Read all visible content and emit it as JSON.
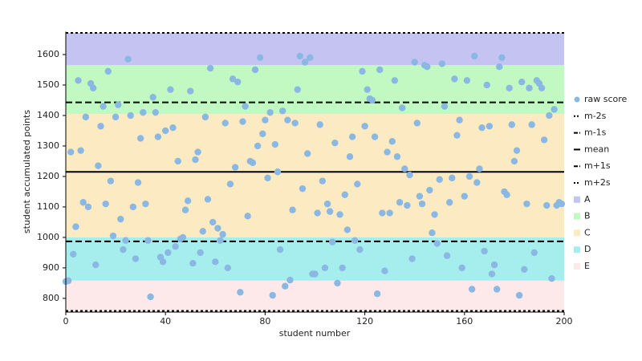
{
  "chart_data": {
    "type": "scatter",
    "xlabel": "student number",
    "ylabel": "student accumulated points",
    "xlim": [
      0,
      200
    ],
    "xticks": [
      0,
      40,
      80,
      120,
      160,
      200
    ],
    "ylim": [
      755,
      1675
    ],
    "yticks": [
      800,
      900,
      1000,
      1100,
      1200,
      1300,
      1400,
      1500,
      1600
    ],
    "bands": [
      {
        "name": "A",
        "range": [
          1565,
          1671
        ],
        "color": "#c5c3f2"
      },
      {
        "name": "B",
        "range": [
          1405,
          1565
        ],
        "color": "#c2f9c2"
      },
      {
        "name": "C",
        "range": [
          1000,
          1405
        ],
        "color": "#fcebc2"
      },
      {
        "name": "D",
        "range": [
          858,
          1000
        ],
        "color": "#a6eeee"
      },
      {
        "name": "E",
        "range": [
          759,
          858
        ],
        "color": "#fde9e9"
      }
    ],
    "lines": [
      {
        "name": "m-2s",
        "value": 759,
        "style": "dotted"
      },
      {
        "name": "m-1s",
        "value": 987,
        "style": "dashed"
      },
      {
        "name": "mean",
        "value": 1215,
        "style": "solid"
      },
      {
        "name": "m+1s",
        "value": 1443,
        "style": "dashed"
      },
      {
        "name": "m+2s",
        "value": 1671,
        "style": "dotted"
      }
    ],
    "series": [
      {
        "name": "raw score",
        "color": "#8ab8e2",
        "x": [
          0,
          1,
          2,
          3,
          4,
          5,
          6,
          7,
          8,
          9,
          10,
          11,
          12,
          13,
          14,
          15,
          16,
          17,
          18,
          19,
          20,
          21,
          22,
          23,
          24,
          25,
          26,
          27,
          28,
          29,
          30,
          31,
          32,
          33,
          34,
          35,
          36,
          37,
          38,
          39,
          40,
          41,
          42,
          43,
          44,
          45,
          46,
          47,
          48,
          49,
          50,
          51,
          52,
          53,
          54,
          55,
          56,
          57,
          58,
          59,
          60,
          61,
          62,
          63,
          64,
          65,
          66,
          67,
          68,
          69,
          70,
          71,
          72,
          73,
          74,
          75,
          76,
          77,
          78,
          79,
          80,
          81,
          82,
          83,
          84,
          85,
          86,
          87,
          88,
          89,
          90,
          91,
          92,
          93,
          94,
          95,
          96,
          97,
          98,
          99,
          100,
          101,
          102,
          103,
          104,
          105,
          106,
          107,
          108,
          109,
          110,
          111,
          112,
          113,
          114,
          115,
          116,
          117,
          118,
          119,
          120,
          121,
          122,
          123,
          124,
          125,
          126,
          127,
          128,
          129,
          130,
          131,
          132,
          133,
          134,
          135,
          136,
          137,
          138,
          139,
          140,
          141,
          142,
          143,
          144,
          145,
          146,
          147,
          148,
          149,
          150,
          151,
          152,
          153,
          154,
          155,
          156,
          157,
          158,
          159,
          160,
          161,
          162,
          163,
          164,
          165,
          166,
          167,
          168,
          169,
          170,
          171,
          172,
          173,
          174,
          175,
          176,
          177,
          178,
          179,
          180,
          181,
          182,
          183,
          184,
          185,
          186,
          187,
          188,
          189,
          190,
          191,
          192,
          193,
          194,
          195,
          196,
          197,
          198,
          199
        ],
        "values": [
          855,
          858,
          1280,
          945,
          1035,
          1515,
          1285,
          1115,
          1395,
          1100,
          1505,
          1490,
          910,
          1235,
          1365,
          1430,
          1110,
          1545,
          1185,
          1005,
          1395,
          1435,
          1060,
          960,
          990,
          1585,
          1400,
          1100,
          930,
          1180,
          1325,
          1410,
          1110,
          990,
          805,
          1460,
          1410,
          1330,
          935,
          920,
          1350,
          950,
          1485,
          1360,
          970,
          1250,
          995,
          1000,
          1090,
          1120,
          1480,
          915,
          1255,
          1280,
          950,
          1020,
          1395,
          1125,
          1555,
          1050,
          920,
          1030,
          990,
          1010,
          1375,
          900,
          1175,
          1520,
          1230,
          1510,
          820,
          1380,
          1430,
          1070,
          1250,
          1245,
          1550,
          1300,
          1590,
          1340,
          1385,
          1195,
          1410,
          810,
          1305,
          1215,
          960,
          1415,
          840,
          1385,
          860,
          1090,
          1375,
          1485,
          1595,
          1160,
          1575,
          1275,
          1590,
          880,
          880,
          1080,
          1370,
          1185,
          900,
          1110,
          1085,
          985,
          1310,
          850,
          1075,
          900,
          1140,
          1025,
          1265,
          1330,
          990,
          1175,
          960,
          1545,
          1365,
          1485,
          1455,
          1450,
          1330,
          815,
          1550,
          1080,
          890,
          1280,
          1080,
          1315,
          1515,
          1265,
          1115,
          1425,
          1225,
          1105,
          1205,
          930,
          1575,
          1375,
          1135,
          1110,
          1565,
          1560,
          1155,
          1015,
          1075,
          980,
          1190,
          1570,
          1430,
          940,
          1115,
          1195,
          1520,
          1335,
          1385,
          900,
          1135,
          1515,
          1200,
          830,
          1595,
          1180,
          1225,
          1360,
          955,
          1500,
          1365,
          880,
          910,
          830,
          1560,
          1590,
          1150,
          1140,
          1490,
          1370,
          1250,
          1285,
          810,
          1510,
          895,
          1110,
          1490,
          1370,
          950,
          1515,
          1505,
          1490,
          1320,
          1105,
          1400,
          865,
          1420,
          1105,
          1115,
          1110
        ]
      }
    ]
  }
}
